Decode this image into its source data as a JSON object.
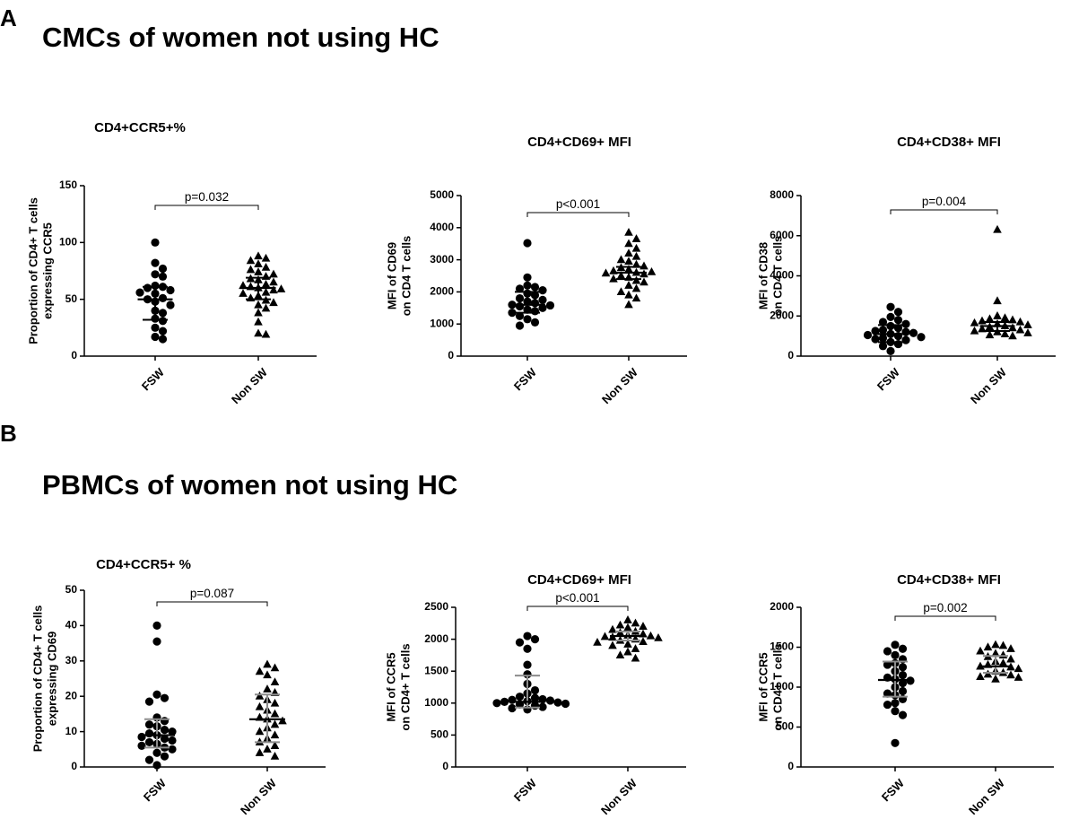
{
  "figure": {
    "panel_a_label": "A",
    "panel_b_label": "B",
    "section_a_title": "CMCs of women not using HC",
    "section_b_title": "PBMCs of women not using HC"
  },
  "colors": {
    "points": "#000000",
    "error_bars_a": "#000000",
    "error_bars_b": "#8c8c8c"
  },
  "chart_data": [
    {
      "type": "scatter",
      "panel": "A",
      "title": "CD4+CCR5+%",
      "ylabel": [
        "Proportion of CD4+ T cells",
        "expressing CCR5"
      ],
      "categories": [
        "FSW",
        "Non SW"
      ],
      "ylim": [
        0,
        150
      ],
      "yticks": [
        0,
        50,
        100,
        150
      ],
      "pvalue": "p=0.032",
      "groups": [
        {
          "name": "FSW",
          "marker": "circle",
          "median": 50,
          "iqr": [
            32,
            61
          ],
          "values": [
            100,
            82,
            77,
            72,
            70,
            62,
            61,
            60,
            58,
            56,
            55,
            51,
            50,
            48,
            45,
            40,
            38,
            33,
            31,
            25,
            22,
            17,
            15
          ]
        },
        {
          "name": "Non SW",
          "marker": "triangle",
          "median": 60,
          "iqr": [
            50,
            69
          ],
          "values": [
            88,
            86,
            84,
            81,
            78,
            76,
            74,
            72,
            70,
            68,
            67,
            65,
            63,
            62,
            61,
            60,
            59,
            58,
            56,
            55,
            53,
            51,
            49,
            47,
            45,
            42,
            38,
            30,
            20,
            19
          ]
        }
      ]
    },
    {
      "type": "scatter",
      "panel": "A",
      "title": "CD4+CD69+ MFI",
      "ylabel": [
        "MFI of CD69",
        "on CD4 T cells"
      ],
      "categories": [
        "FSW",
        "Non SW"
      ],
      "ylim": [
        0,
        5000
      ],
      "yticks": [
        0,
        1000,
        2000,
        3000,
        4000,
        5000
      ],
      "pvalue": "p<0.001",
      "groups": [
        {
          "name": "FSW",
          "marker": "circle",
          "median": 1600,
          "iqr": [
            1350,
            2000
          ],
          "values": [
            3520,
            2450,
            2200,
            2150,
            2100,
            2050,
            1950,
            1900,
            1800,
            1750,
            1700,
            1650,
            1600,
            1580,
            1550,
            1500,
            1450,
            1400,
            1350,
            1250,
            1150,
            1050,
            950
          ]
        },
        {
          "name": "Non SW",
          "marker": "triangle",
          "median": 2600,
          "iqr": [
            2400,
            2780
          ],
          "values": [
            3850,
            3650,
            3500,
            3350,
            3200,
            3100,
            3000,
            2950,
            2850,
            2800,
            2750,
            2700,
            2650,
            2620,
            2600,
            2580,
            2550,
            2500,
            2450,
            2400,
            2350,
            2300,
            2200,
            2100,
            2000,
            1900,
            1800,
            1600
          ]
        }
      ]
    },
    {
      "type": "scatter",
      "panel": "A",
      "title": "CD4+CD38+ MFI",
      "ylabel": [
        "MFI of CD38",
        "on CD4 T cells"
      ],
      "categories": [
        "FSW",
        "Non SW"
      ],
      "ylim": [
        0,
        8000
      ],
      "yticks": [
        0,
        2000,
        4000,
        6000,
        8000
      ],
      "pvalue": "p=0.004",
      "groups": [
        {
          "name": "FSW",
          "marker": "circle",
          "median": 1100,
          "iqr": [
            700,
            1550
          ],
          "values": [
            2450,
            2200,
            1950,
            1800,
            1700,
            1600,
            1500,
            1400,
            1300,
            1250,
            1200,
            1150,
            1100,
            1050,
            1000,
            950,
            900,
            850,
            800,
            700,
            600,
            500,
            250
          ]
        },
        {
          "name": "Non SW",
          "marker": "triangle",
          "median": 1500,
          "iqr": [
            1250,
            1700
          ],
          "values": [
            6300,
            2750,
            2000,
            1900,
            1850,
            1800,
            1750,
            1700,
            1650,
            1600,
            1550,
            1500,
            1450,
            1400,
            1350,
            1300,
            1250,
            1200,
            1150,
            1100,
            1050,
            1000
          ]
        }
      ]
    },
    {
      "type": "scatter",
      "panel": "B",
      "title": "CD4+CCR5+ %",
      "ylabel": [
        "Proportion of CD4+ T cells",
        "expressing CD69"
      ],
      "categories": [
        "FSW",
        "Non SW"
      ],
      "ylim": [
        0,
        50
      ],
      "yticks": [
        0,
        10,
        20,
        30,
        40,
        50
      ],
      "pvalue": "p=0.087",
      "groups": [
        {
          "name": "FSW",
          "marker": "circle",
          "median": 9,
          "iqr": [
            5.5,
            13.5
          ],
          "values": [
            40,
            35.5,
            20.5,
            19.5,
            18.5,
            14,
            13,
            12,
            11.5,
            10.5,
            10,
            9.5,
            9,
            8.5,
            8,
            7.5,
            7,
            6.5,
            6,
            5.5,
            5,
            4,
            3,
            2,
            0.5
          ]
        },
        {
          "name": "Non SW",
          "marker": "triangle",
          "median": 13.5,
          "iqr": [
            7,
            20.5
          ],
          "values": [
            29,
            28,
            27,
            26,
            24,
            22,
            21,
            20,
            19,
            18,
            17,
            16,
            15,
            14,
            13.5,
            13,
            12,
            11,
            10,
            9,
            8,
            7,
            6,
            5,
            4,
            3
          ]
        }
      ]
    },
    {
      "type": "scatter",
      "panel": "B",
      "title": "CD4+CD69+ MFI",
      "ylabel": [
        "MFI of CCR5",
        "on CD4+ T cells"
      ],
      "categories": [
        "FSW",
        "Non SW"
      ],
      "ylim": [
        0,
        2500
      ],
      "yticks": [
        0,
        500,
        1000,
        1500,
        2000,
        2500
      ],
      "pvalue": "p<0.001",
      "groups": [
        {
          "name": "FSW",
          "marker": "circle",
          "median": 1020,
          "iqr": [
            930,
            1430
          ],
          "values": [
            2050,
            2000,
            1950,
            1850,
            1600,
            1450,
            1300,
            1200,
            1150,
            1100,
            1080,
            1060,
            1050,
            1040,
            1030,
            1020,
            1010,
            1000,
            990,
            980,
            960,
            940,
            920,
            900
          ]
        },
        {
          "name": "Non SW",
          "marker": "triangle",
          "median": 2050,
          "iqr": [
            1980,
            2120
          ],
          "values": [
            2300,
            2250,
            2220,
            2200,
            2180,
            2150,
            2120,
            2100,
            2080,
            2060,
            2050,
            2040,
            2030,
            2020,
            2000,
            1980,
            1960,
            1950,
            1920,
            1900,
            1850,
            1800,
            1750,
            1700
          ]
        }
      ]
    },
    {
      "type": "scatter",
      "panel": "B",
      "title": "CD4+CD38+ MFI",
      "ylabel": [
        "MFI of CCR5",
        "on CD4+ T cells"
      ],
      "categories": [
        "FSW",
        "Non SW"
      ],
      "ylim": [
        0,
        2000
      ],
      "yticks": [
        0,
        500,
        1000,
        1500,
        2000
      ],
      "pvalue": "p=0.002",
      "groups": [
        {
          "name": "FSW",
          "marker": "circle",
          "median": 1090,
          "iqr": [
            880,
            1320
          ],
          "values": [
            1530,
            1480,
            1450,
            1400,
            1350,
            1300,
            1280,
            1250,
            1200,
            1150,
            1120,
            1100,
            1080,
            1050,
            1000,
            950,
            920,
            900,
            850,
            800,
            780,
            700,
            650,
            300
          ]
        },
        {
          "name": "Non SW",
          "marker": "triangle",
          "median": 1260,
          "iqr": [
            1180,
            1390
          ],
          "values": [
            1530,
            1520,
            1500,
            1480,
            1450,
            1420,
            1400,
            1380,
            1350,
            1320,
            1300,
            1280,
            1260,
            1250,
            1230,
            1200,
            1180,
            1160,
            1150,
            1130,
            1120,
            1100
          ]
        }
      ]
    }
  ]
}
